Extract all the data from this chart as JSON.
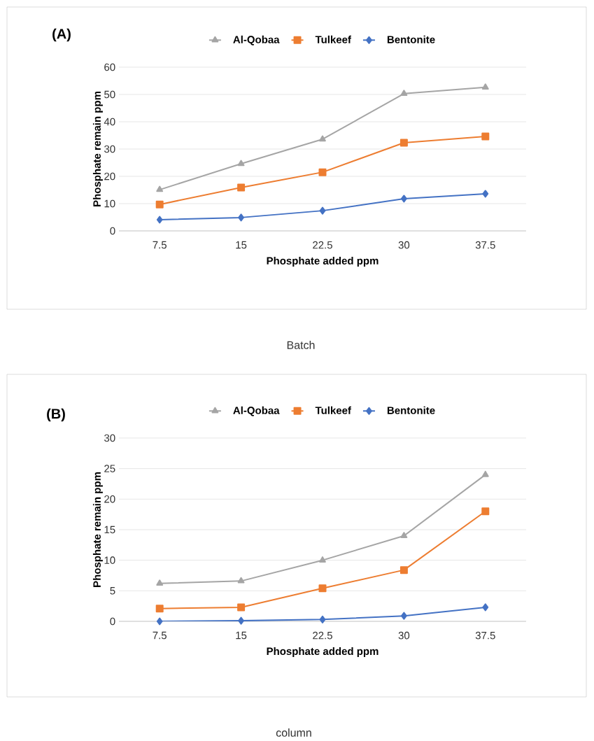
{
  "chart_data": [
    {
      "type": "line",
      "title": "(A)",
      "xlabel": "Phosphate added ppm",
      "ylabel": "Phosphate remain ppm",
      "annotations": [
        "Batch"
      ],
      "categories": [
        "7.5",
        "15",
        "22.5",
        "30",
        "37.5"
      ],
      "ylim": [
        0,
        60
      ],
      "yticks": [
        0,
        10,
        20,
        30,
        40,
        50,
        60
      ],
      "grid": "y",
      "legend": "top",
      "series": [
        {
          "name": "Al-Qobaa",
          "color": "#a5a5a5",
          "marker": "triangle",
          "values": [
            15.1,
            24.6,
            33.6,
            50.3,
            52.6
          ]
        },
        {
          "name": "Tulkeef",
          "color": "#ed7d31",
          "marker": "square",
          "values": [
            9.7,
            15.9,
            21.5,
            32.3,
            34.6
          ]
        },
        {
          "name": "Bentonite",
          "color": "#4472c4",
          "marker": "diamond",
          "values": [
            4.1,
            4.9,
            7.4,
            11.8,
            13.6
          ]
        }
      ]
    },
    {
      "type": "line",
      "title": "(B)",
      "xlabel": "Phosphate added ppm",
      "ylabel": "Phosphate remain ppm",
      "annotations": [
        "column"
      ],
      "categories": [
        "7.5",
        "15",
        "22.5",
        "30",
        "37.5"
      ],
      "ylim": [
        0,
        30
      ],
      "yticks": [
        0,
        5,
        10,
        15,
        20,
        25,
        30
      ],
      "grid": "y",
      "legend": "top",
      "series": [
        {
          "name": "Al-Qobaa",
          "color": "#a5a5a5",
          "marker": "triangle",
          "values": [
            6.2,
            6.6,
            10.0,
            14.0,
            24.0
          ]
        },
        {
          "name": "Tulkeef",
          "color": "#ed7d31",
          "marker": "square",
          "values": [
            2.1,
            2.3,
            5.4,
            8.4,
            18.0
          ]
        },
        {
          "name": "Bentonite",
          "color": "#4472c4",
          "marker": "diamond",
          "values": [
            0.0,
            0.1,
            0.3,
            0.9,
            2.3
          ]
        }
      ]
    }
  ]
}
